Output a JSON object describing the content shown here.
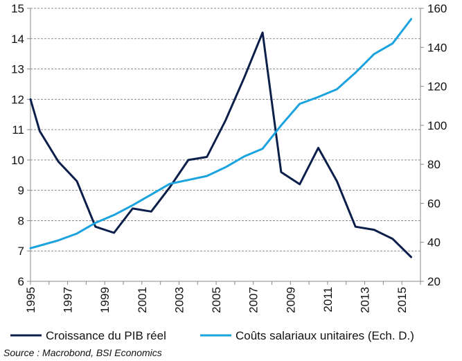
{
  "chart_data": {
    "type": "line",
    "title": "",
    "xlabel": "",
    "ylabel": "",
    "x": [
      1995,
      1996,
      1997,
      1998,
      1999,
      2000,
      2001,
      2002,
      2003,
      2004,
      2005,
      2006,
      2007,
      2008,
      2009,
      2010,
      2011,
      2012,
      2013,
      2014,
      2015
    ],
    "x_tick_labels": [
      "1995",
      "1997",
      "1999",
      "2001",
      "2003",
      "2005",
      "2007",
      "2009",
      "2011",
      "2013",
      "2015"
    ],
    "ylim_left": [
      6,
      15
    ],
    "yticks_left": [
      "6",
      "7",
      "8",
      "9",
      "10",
      "11",
      "12",
      "13",
      "14",
      "15"
    ],
    "ylim_right": [
      20,
      160
    ],
    "yticks_right": [
      "20",
      "40",
      "60",
      "80",
      "100",
      "120",
      "140",
      "160"
    ],
    "grid": "horizontal dashed",
    "series": [
      {
        "name": "Croissance du PIB réel",
        "axis": "left",
        "color": "#0b1f4a",
        "points": [
          [
            1995.0,
            12.0
          ],
          [
            1995.5,
            10.95
          ],
          [
            1996.5,
            9.95
          ],
          [
            1997.5,
            9.3
          ],
          [
            1998.5,
            7.8
          ],
          [
            1999.5,
            7.6
          ],
          [
            2000.5,
            8.4
          ],
          [
            2001.5,
            8.3
          ],
          [
            2002.5,
            9.1
          ],
          [
            2003.5,
            10.0
          ],
          [
            2004.5,
            10.1
          ],
          [
            2005.5,
            11.3
          ],
          [
            2006.5,
            12.7
          ],
          [
            2007.5,
            14.2
          ],
          [
            2008.5,
            9.6
          ],
          [
            2009.5,
            9.2
          ],
          [
            2010.5,
            10.4
          ],
          [
            2011.5,
            9.3
          ],
          [
            2012.5,
            7.8
          ],
          [
            2013.5,
            7.7
          ],
          [
            2014.5,
            7.4
          ],
          [
            2015.5,
            6.8
          ]
        ]
      },
      {
        "name": "Coûts salariaux unitaires (Ech. D.)",
        "axis": "right",
        "color": "#1aa3de",
        "points": [
          [
            1995.0,
            37.0
          ],
          [
            1995.5,
            38.3
          ],
          [
            1996.5,
            41.0
          ],
          [
            1997.5,
            44.5
          ],
          [
            1998.5,
            50.0
          ],
          [
            1999.5,
            54.0
          ],
          [
            2000.5,
            59.0
          ],
          [
            2001.5,
            64.5
          ],
          [
            2002.5,
            70.0
          ],
          [
            2003.5,
            72.0
          ],
          [
            2004.5,
            74.0
          ],
          [
            2005.5,
            78.5
          ],
          [
            2006.5,
            84.0
          ],
          [
            2007.5,
            88.0
          ],
          [
            2008.5,
            100.0
          ],
          [
            2009.5,
            111.0
          ],
          [
            2010.5,
            114.5
          ],
          [
            2011.5,
            118.5
          ],
          [
            2012.5,
            127.0
          ],
          [
            2013.5,
            136.5
          ],
          [
            2014.5,
            142.0
          ],
          [
            2015.5,
            154.5
          ]
        ]
      }
    ],
    "legend": {
      "position": "bottom",
      "entries": [
        "Croissance du PIB réel",
        "Coûts salariaux unitaires (Ech. D.)"
      ]
    },
    "source": "Source : Macrobond, BSI Economics"
  }
}
